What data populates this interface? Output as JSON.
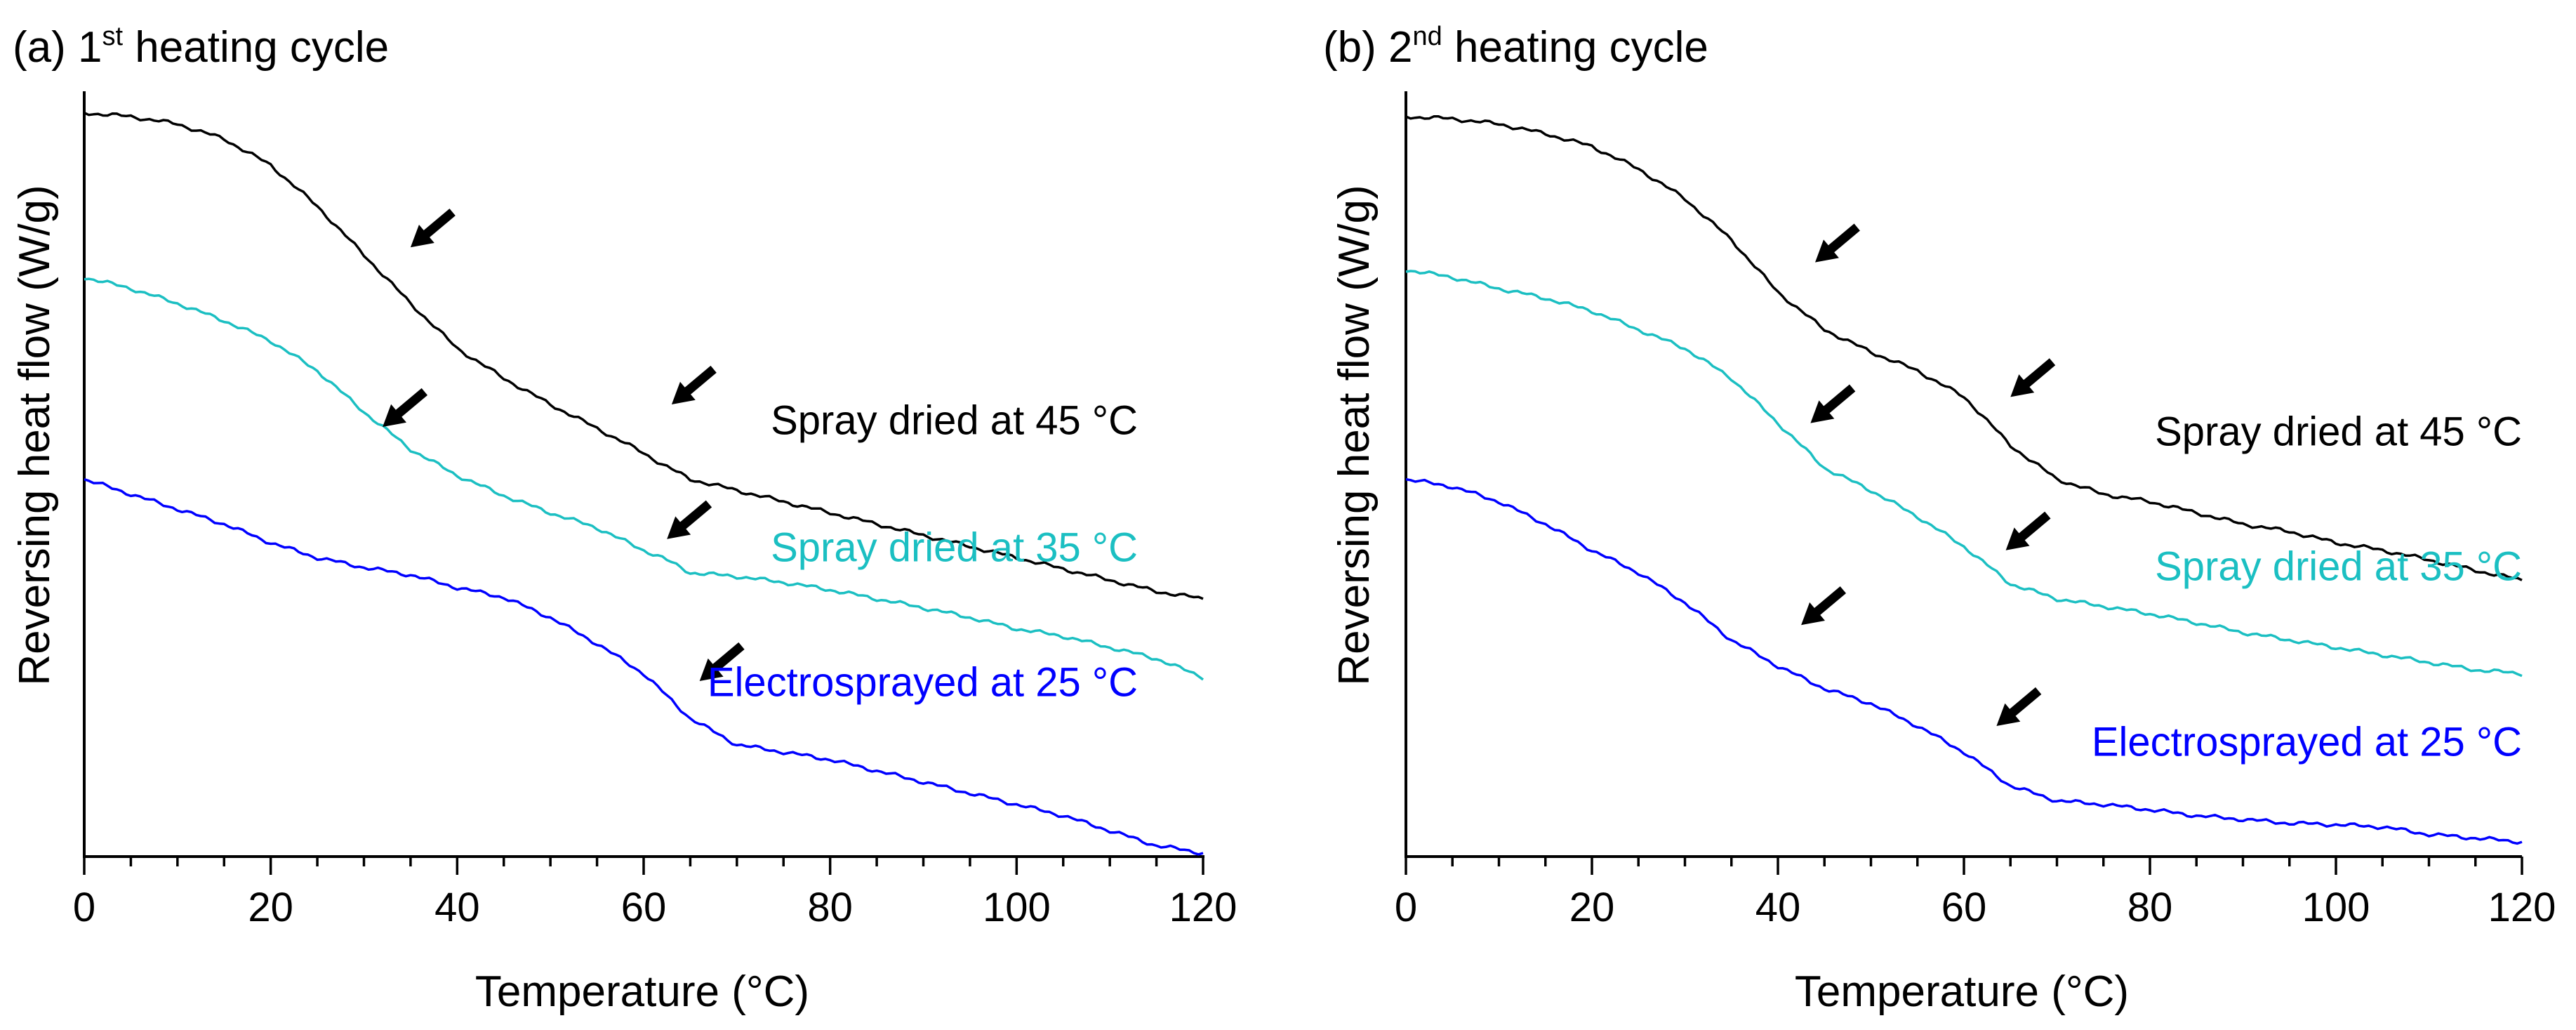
{
  "chart_data": [
    {
      "type": "line",
      "panel_label": "(a) 1",
      "panel_superscript": "st",
      "panel_suffix": " heating cycle",
      "xlabel": "Temperature (°C)",
      "ylabel": "Reversing heat flow (W/g)",
      "xlim": [
        0,
        120
      ],
      "ylim": [
        0,
        1
      ],
      "x_ticks": [
        0,
        20,
        40,
        60,
        80,
        100,
        120
      ],
      "x_tick_labels": [
        "0",
        "20",
        "40",
        "60",
        "80",
        "100",
        "120"
      ],
      "y_ticks_labeled": false,
      "grid": false,
      "series": [
        {
          "name": "Spray dried at 45 °C",
          "color": "#000000",
          "x": [
            0,
            5,
            10,
            15,
            20,
            25,
            30,
            35,
            40,
            45,
            50,
            55,
            60,
            62,
            65,
            70,
            75,
            80,
            85,
            90,
            95,
            100,
            105,
            110,
            115,
            120
          ],
          "y": [
            0.99,
            0.985,
            0.975,
            0.955,
            0.92,
            0.865,
            0.8,
            0.735,
            0.675,
            0.635,
            0.6,
            0.568,
            0.535,
            0.52,
            0.5,
            0.485,
            0.47,
            0.455,
            0.44,
            0.425,
            0.41,
            0.395,
            0.38,
            0.365,
            0.35,
            0.34
          ]
        },
        {
          "name": "Spray dried at 35 °C",
          "color": "#1bbfc2",
          "x": [
            0,
            5,
            10,
            15,
            20,
            25,
            30,
            35,
            40,
            45,
            50,
            55,
            60,
            62,
            65,
            70,
            75,
            80,
            85,
            90,
            95,
            100,
            105,
            110,
            115,
            120
          ],
          "y": [
            0.77,
            0.755,
            0.735,
            0.712,
            0.685,
            0.645,
            0.59,
            0.54,
            0.505,
            0.478,
            0.455,
            0.435,
            0.405,
            0.395,
            0.375,
            0.37,
            0.362,
            0.352,
            0.34,
            0.328,
            0.315,
            0.3,
            0.29,
            0.275,
            0.26,
            0.235
          ]
        },
        {
          "name": "Electrosprayed at 25 °C",
          "color": "#0000ff",
          "x": [
            0,
            5,
            10,
            15,
            20,
            25,
            30,
            35,
            40,
            45,
            50,
            55,
            60,
            65,
            70,
            75,
            80,
            85,
            90,
            95,
            100,
            105,
            110,
            115,
            120
          ],
          "y": [
            0.5,
            0.48,
            0.46,
            0.44,
            0.415,
            0.395,
            0.382,
            0.372,
            0.355,
            0.342,
            0.315,
            0.28,
            0.24,
            0.18,
            0.145,
            0.135,
            0.125,
            0.11,
            0.095,
            0.08,
            0.065,
            0.05,
            0.03,
            0.01,
            0.0
          ]
        }
      ],
      "label_positions": [
        {
          "series": 0,
          "x": 113,
          "y": 0.56
        },
        {
          "series": 1,
          "x": 113,
          "y": 0.39
        },
        {
          "series": 2,
          "x": 113,
          "y": 0.21
        }
      ],
      "arrows": [
        {
          "x": 35,
          "y": 0.81
        },
        {
          "x": 63,
          "y": 0.6
        },
        {
          "x": 32,
          "y": 0.57
        },
        {
          "x": 62.5,
          "y": 0.42
        },
        {
          "x": 66,
          "y": 0.23
        }
      ]
    },
    {
      "type": "line",
      "panel_label": "(b) 2",
      "panel_superscript": "nd",
      "panel_suffix": " heating cycle",
      "xlabel": "Temperature (°C)",
      "ylabel": "Reversing heat flow (W/g)",
      "xlim": [
        0,
        120
      ],
      "ylim": [
        0,
        1
      ],
      "x_ticks": [
        0,
        20,
        40,
        60,
        80,
        100,
        120
      ],
      "x_tick_labels": [
        "0",
        "20",
        "40",
        "60",
        "80",
        "100",
        "120"
      ],
      "y_ticks_labeled": false,
      "grid": false,
      "series": [
        {
          "name": "Spray dried at 45 °C",
          "color": "#000000",
          "x": [
            0,
            5,
            10,
            15,
            20,
            25,
            30,
            35,
            40,
            45,
            50,
            55,
            60,
            62,
            65,
            70,
            75,
            80,
            85,
            90,
            95,
            100,
            105,
            110,
            115,
            120
          ],
          "y": [
            0.985,
            0.982,
            0.975,
            0.962,
            0.945,
            0.915,
            0.875,
            0.82,
            0.75,
            0.7,
            0.67,
            0.645,
            0.61,
            0.585,
            0.545,
            0.5,
            0.48,
            0.47,
            0.455,
            0.44,
            0.43,
            0.415,
            0.405,
            0.392,
            0.378,
            0.365
          ]
        },
        {
          "name": "Spray dried at 35 °C",
          "color": "#1bbfc2",
          "x": [
            0,
            5,
            10,
            15,
            20,
            25,
            30,
            35,
            40,
            45,
            50,
            55,
            60,
            65,
            70,
            75,
            80,
            85,
            90,
            95,
            100,
            105,
            110,
            115,
            120
          ],
          "y": [
            0.78,
            0.77,
            0.755,
            0.742,
            0.725,
            0.7,
            0.675,
            0.635,
            0.575,
            0.515,
            0.485,
            0.45,
            0.41,
            0.36,
            0.34,
            0.33,
            0.32,
            0.308,
            0.295,
            0.285,
            0.275,
            0.265,
            0.255,
            0.245,
            0.24
          ]
        },
        {
          "name": "Electrosprayed at 25 °C",
          "color": "#0000ff",
          "x": [
            0,
            5,
            10,
            15,
            20,
            25,
            30,
            35,
            40,
            45,
            50,
            55,
            60,
            65,
            70,
            75,
            80,
            85,
            90,
            95,
            100,
            105,
            110,
            115,
            120
          ],
          "y": [
            0.5,
            0.49,
            0.47,
            0.44,
            0.405,
            0.375,
            0.335,
            0.285,
            0.25,
            0.22,
            0.2,
            0.17,
            0.135,
            0.09,
            0.07,
            0.065,
            0.058,
            0.05,
            0.045,
            0.04,
            0.038,
            0.035,
            0.025,
            0.02,
            0.015
          ]
        }
      ],
      "label_positions": [
        {
          "series": 0,
          "x": 120,
          "y": 0.545
        },
        {
          "series": 1,
          "x": 120,
          "y": 0.365
        },
        {
          "series": 2,
          "x": 120,
          "y": 0.13
        }
      ],
      "arrows": [
        {
          "x": 44,
          "y": 0.79
        },
        {
          "x": 65,
          "y": 0.61
        },
        {
          "x": 43.5,
          "y": 0.575
        },
        {
          "x": 64.5,
          "y": 0.405
        },
        {
          "x": 42.5,
          "y": 0.305
        },
        {
          "x": 63.5,
          "y": 0.17
        }
      ]
    }
  ]
}
